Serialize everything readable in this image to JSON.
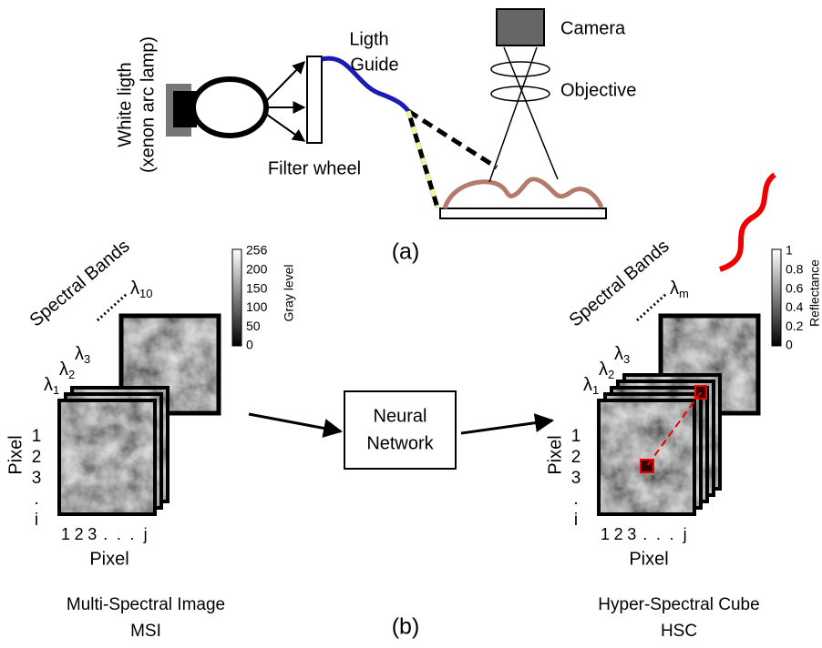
{
  "part_a": {
    "lamp_label": [
      "White ligth",
      "(xenon arc lamp)"
    ],
    "filter_label": "Filter wheel",
    "guide_label": [
      "Ligth",
      "Guide"
    ],
    "camera_label": "Camera",
    "objective_label": "Objective",
    "caption": "(a)"
  },
  "part_b": {
    "msi": {
      "axis_title": "Spectral Bands",
      "bands": [
        {
          "symbol": "λ",
          "sub": "1"
        },
        {
          "symbol": "λ",
          "sub": "2"
        },
        {
          "symbol": "λ",
          "sub": "3"
        }
      ],
      "last_band": {
        "symbol": "λ",
        "sub": "10"
      },
      "colorbar_ticks": [
        "256",
        "200",
        "150",
        "100",
        "50",
        "0"
      ],
      "colorbar_label": "Gray level",
      "row_labels": [
        "1",
        "2",
        "3",
        ".",
        "i"
      ],
      "col_labels": [
        "1",
        "2",
        "3",
        ".",
        ".",
        ".",
        "j"
      ],
      "y_axis_label": "Pixel",
      "x_axis_label": "Pixel",
      "caption": [
        "Multi-Spectral Image",
        "MSI"
      ]
    },
    "network": [
      "Neural",
      "Network"
    ],
    "hsc": {
      "axis_title": "Spectral Bands",
      "bands": [
        {
          "symbol": "λ",
          "sub": "1"
        },
        {
          "symbol": "λ",
          "sub": "2"
        },
        {
          "symbol": "λ",
          "sub": "3"
        }
      ],
      "last_band": {
        "symbol": "λ",
        "sub": "m"
      },
      "colorbar_ticks": [
        "1",
        "0.8",
        "0.6",
        "0.4",
        "0.2",
        "0"
      ],
      "colorbar_label": "Reflectance",
      "row_labels": [
        "1",
        "2",
        "3",
        ".",
        "i"
      ],
      "col_labels": [
        "1",
        "2",
        "3",
        ".",
        ".",
        ".",
        "j"
      ],
      "y_axis_label": "Pixel",
      "x_axis_label": "Pixel",
      "caption": [
        "Hyper-Spectral Cube",
        "HSC"
      ]
    },
    "caption": "(b)"
  }
}
